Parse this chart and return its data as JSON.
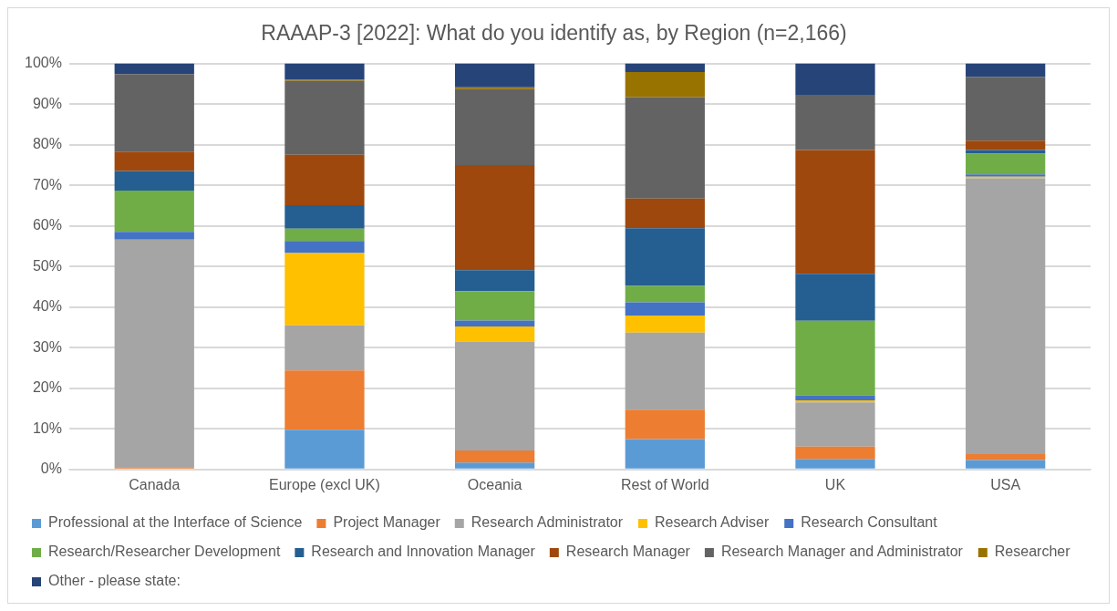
{
  "chart_data": {
    "type": "bar",
    "title": "RAAAP-3 [2022]: What do you identify as, by Region (n=2,166)",
    "categories": [
      "Canada",
      "Europe (excl UK)",
      "Oceania",
      "Rest of World",
      "UK",
      "USA"
    ],
    "stacked": true,
    "ylim": [
      0,
      100
    ],
    "yticks": [
      {
        "value": 0,
        "label": "0%"
      },
      {
        "value": 10,
        "label": "10%"
      },
      {
        "value": 20,
        "label": "20%"
      },
      {
        "value": 30,
        "label": "30%"
      },
      {
        "value": 40,
        "label": "40%"
      },
      {
        "value": 50,
        "label": "50%"
      },
      {
        "value": 60,
        "label": "60%"
      },
      {
        "value": 70,
        "label": "70%"
      },
      {
        "value": 80,
        "label": "80%"
      },
      {
        "value": 90,
        "label": "90%"
      },
      {
        "value": 100,
        "label": "100%"
      }
    ],
    "grid": "y",
    "legend": "bottom",
    "series": [
      {
        "name": "Professional at the Interface of Science",
        "color": "#5b9bd5",
        "values": [
          0,
          9.8,
          1.7,
          7.5,
          2.6,
          2.3
        ]
      },
      {
        "name": "Project Manager",
        "color": "#ed7d31",
        "values": [
          0.6,
          14.6,
          3.0,
          7.2,
          3.0,
          1.5
        ]
      },
      {
        "name": "Research Administrator",
        "color": "#a5a5a5",
        "values": [
          56.0,
          11.1,
          26.8,
          19.0,
          10.9,
          67.9
        ]
      },
      {
        "name": "Research Adviser",
        "color": "#ffc000",
        "values": [
          0,
          17.8,
          3.7,
          4.2,
          0.5,
          0.4
        ]
      },
      {
        "name": "Research Consultant",
        "color": "#4472c4",
        "values": [
          1.9,
          3.0,
          1.5,
          3.3,
          1.2,
          0.6
        ]
      },
      {
        "name": "Research/Researcher Development",
        "color": "#70ad47",
        "values": [
          10.2,
          3.0,
          7.2,
          4.0,
          18.4,
          5.1
        ]
      },
      {
        "name": "Research and Innovation Manager",
        "color": "#255e91",
        "values": [
          4.8,
          5.8,
          5.2,
          14.2,
          11.6,
          0.9
        ]
      },
      {
        "name": "Research Manager",
        "color": "#9e480e",
        "values": [
          4.8,
          12.4,
          25.9,
          7.3,
          30.5,
          2.3
        ]
      },
      {
        "name": "Research Manager and Administrator",
        "color": "#636363",
        "values": [
          19.1,
          18.2,
          18.7,
          25.0,
          13.6,
          15.7
        ]
      },
      {
        "name": "Researcher",
        "color": "#997300",
        "values": [
          0,
          0.3,
          0.4,
          6.2,
          0,
          0
        ]
      },
      {
        "name": "Other - please state:",
        "color": "#264478",
        "values": [
          2.6,
          4.0,
          5.9,
          2.1,
          7.7,
          3.3
        ]
      }
    ]
  }
}
